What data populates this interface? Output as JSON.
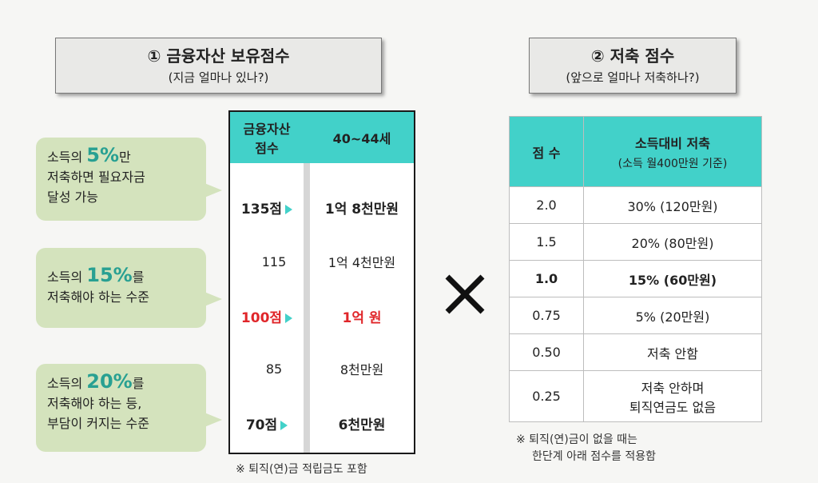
{
  "left_box": {
    "title": "① 금융자산 보유점수",
    "subtitle": "(지금 얼마나 있나?)"
  },
  "right_box": {
    "title": "② 저축 점수",
    "subtitle": "(앞으로 얼마나 저축하나?)"
  },
  "bubbles": [
    {
      "line1_pre": "소득의 ",
      "highlight": "5%",
      "line1_post": "만",
      "line2": "저축하면 필요자금",
      "line3": "달성 가능"
    },
    {
      "line1_pre": "소득의 ",
      "highlight": "15%",
      "line1_post": "를",
      "line2": "저축해야 하는 수준",
      "line3": ""
    },
    {
      "line1_pre": "소득의 ",
      "highlight": "20%",
      "line1_post": "를",
      "line2": "저축해야 하는 등,",
      "line3": "부담이 커지는 수준"
    }
  ],
  "asset_table": {
    "header_col1_l1": "금융자산",
    "header_col1_l2": "점수",
    "header_col2": "40~44세",
    "rows": [
      {
        "score": "135점",
        "amount": "1억 8천만원"
      },
      {
        "score": "115",
        "amount": "1억 4천만원"
      },
      {
        "score": "100점",
        "amount": "1억 원"
      },
      {
        "score": "85",
        "amount": "8천만원"
      },
      {
        "score": "70점",
        "amount": "6천만원"
      }
    ],
    "note": "※ 퇴직(연)금 적립금도 포함"
  },
  "multiply_symbol": "×",
  "save_table": {
    "header_col1": "점 수",
    "header_col2_l1": "소득대비 저축",
    "header_col2_l2": "(소득 월400만원 기준)",
    "rows": [
      {
        "score": "2.0",
        "saving": "30% (120만원)"
      },
      {
        "score": "1.5",
        "saving": "20% (80만원)"
      },
      {
        "score": "1.0",
        "saving": "15% (60만원)"
      },
      {
        "score": "0.75",
        "saving": "5% (20만원)"
      },
      {
        "score": "0.50",
        "saving": "저축 안함"
      },
      {
        "score": "0.25",
        "saving_l1": "저축 안하며",
        "saving_l2": "퇴직연금도 없음"
      }
    ],
    "note_l1": "※ 퇴직(연)금이 없을 때는",
    "note_l2": "한단계 아래 점수를 적용함"
  },
  "colors": {
    "teal": "#42d1c9",
    "bubble": "#d4e3bd",
    "highlight": "#28a092",
    "red": "#e0262a"
  }
}
